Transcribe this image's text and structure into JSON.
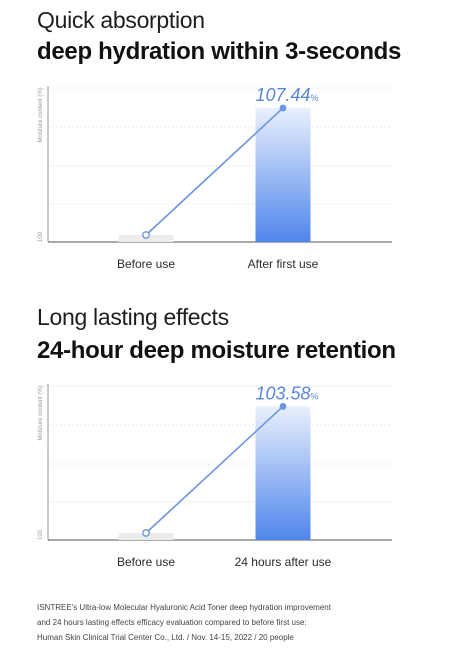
{
  "chart_data": [
    {
      "type": "bar",
      "subtitle": "Quick absorption",
      "title": "deep hydration within 3-seconds",
      "ylabel": "Moisture content (%)",
      "y_tick_label": "100",
      "categories": [
        "Before use",
        "After first use"
      ],
      "values": [
        100,
        107.44
      ],
      "value_label": "107.44",
      "value_unit": "%",
      "ylim": [
        99.7,
        108.6
      ],
      "grid": true,
      "overlay": "line"
    },
    {
      "type": "bar",
      "subtitle": "Long lasting effects",
      "title": "24-hour deep moisture retention",
      "ylabel": "Moisture content (%)",
      "y_tick_label": "100",
      "categories": [
        "Before use",
        "24 hours after use"
      ],
      "values": [
        100,
        103.58
      ],
      "value_label": "103.58",
      "value_unit": "%",
      "ylim": [
        99.85,
        104.15
      ],
      "grid": true,
      "overlay": "line"
    }
  ],
  "footnote": [
    "ISNTREE's Ultra-low Molecular Hyaluronic Acid Toner deep hydration improvement",
    "and 24 hours lasting effects efficacy evaluation compared to before first use:",
    "Human Skin Clinical Trial Center Co., Ltd. / Nov. 14-15, 2022 / 20 people"
  ],
  "colors": {
    "bar_top": "#e9f0fc",
    "bar_bottom": "#4f86ec",
    "baseline_bar": "#ececec",
    "line": "#6b95de",
    "value_text": "#5a86d9",
    "grid": "#e4e4e4",
    "axis": "#9a9a9a"
  }
}
